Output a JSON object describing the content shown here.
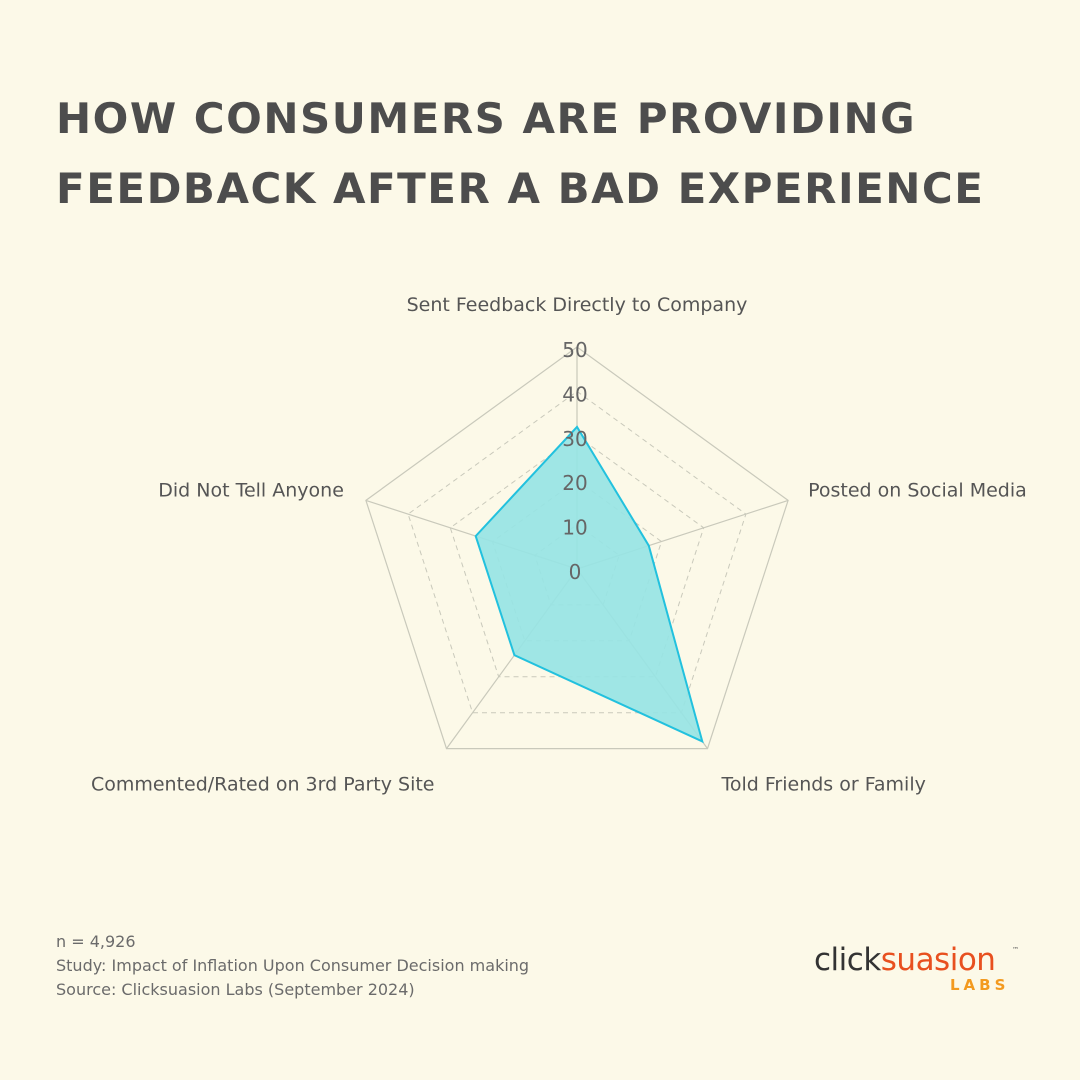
{
  "title": {
    "line1": "HOW CONSUMERS ARE PROVIDING",
    "line2": "FEEDBACK AFTER A BAD EXPERIENCE"
  },
  "chart_data": {
    "type": "radar",
    "categories": [
      "Sent Feedback Directly to Company",
      "Posted on Social Media",
      "Told Friends or Family",
      "Commented/Rated on 3rd Party Site",
      "Did Not Tell Anyone"
    ],
    "series": [
      {
        "values": [
          32,
          17,
          48,
          24,
          24
        ]
      }
    ],
    "rticks": [
      0,
      10,
      20,
      30,
      40,
      50
    ],
    "rlim": [
      0,
      50
    ],
    "grid": true,
    "colors": {
      "fill": "#97e4e4",
      "line": "#22c1de",
      "grid": "#c9c9bb",
      "spoke": "#c9c9bb",
      "label": "#555555",
      "tick": "#666666"
    }
  },
  "footer": {
    "sample": "n = 4,926",
    "study": "Study: Impact of Inflation Upon Consumer Decision making",
    "source": "Source: Clicksuasion Labs (September 2024)"
  },
  "logo": {
    "click": "click",
    "suasion": "suasion",
    "tm": "™",
    "labs": "LABS"
  }
}
